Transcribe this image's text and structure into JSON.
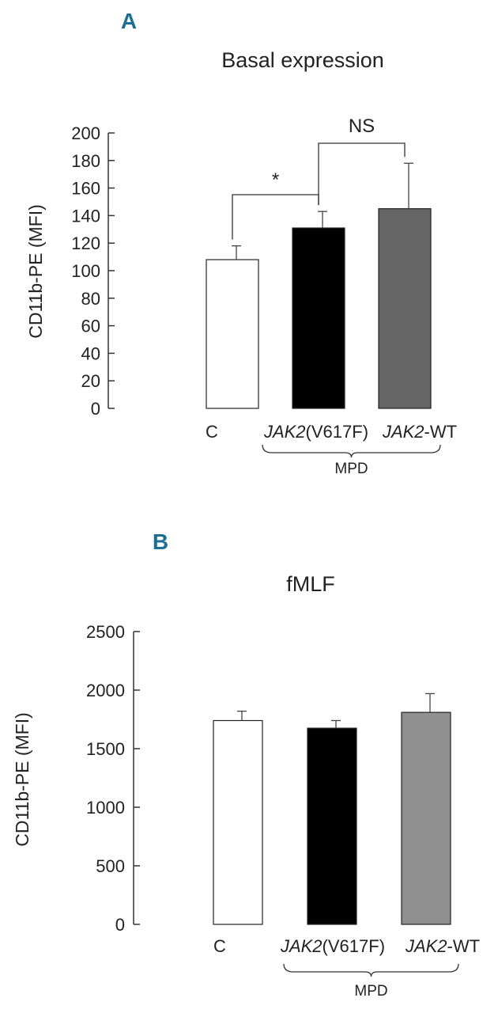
{
  "colors": {
    "panel_letter": "#1b6f95",
    "white_bar": "#ffffff",
    "black_bar": "#000000",
    "gray_bar_a": "#666666",
    "gray_bar_b": "#909090"
  },
  "chart_data": [
    {
      "panel": "A",
      "type": "bar",
      "title": "Basal expression",
      "ylabel": "CD11b-PE (MFI)",
      "xlabel": "",
      "ylim": [
        0,
        200
      ],
      "yticks": [
        "0",
        "20",
        "40",
        "60",
        "80",
        "100",
        "120",
        "140",
        "160",
        "180",
        "200"
      ],
      "categories": [
        {
          "italic": "",
          "rest": "C"
        },
        {
          "italic": "JAK2",
          "rest": "(V617F)"
        },
        {
          "italic": "JAK2",
          "rest": "-WT"
        }
      ],
      "values": [
        108,
        131,
        145
      ],
      "error": [
        10,
        12,
        33
      ],
      "fill_colors": [
        "#ffffff",
        "#000000",
        "#666666"
      ],
      "group_label": "MPD",
      "significance": [
        {
          "label": "*",
          "between": [
            0,
            1
          ]
        },
        {
          "label": "NS",
          "between": [
            1,
            2
          ]
        }
      ],
      "grid": false
    },
    {
      "panel": "B",
      "type": "bar",
      "title": "fMLF",
      "ylabel": "CD11b-PE (MFI)",
      "xlabel": "",
      "ylim": [
        0,
        2500
      ],
      "yticks": [
        "0",
        "500",
        "1000",
        "1500",
        "2000",
        "2500"
      ],
      "categories": [
        {
          "italic": "",
          "rest": "C"
        },
        {
          "italic": "JAK2",
          "rest": "(V617F)"
        },
        {
          "italic": "JAK2",
          "rest": "-WT"
        }
      ],
      "values": [
        1740,
        1675,
        1810
      ],
      "error": [
        80,
        65,
        160
      ],
      "fill_colors": [
        "#ffffff",
        "#000000",
        "#909090"
      ],
      "group_label": "MPD",
      "significance": [],
      "grid": false
    }
  ]
}
